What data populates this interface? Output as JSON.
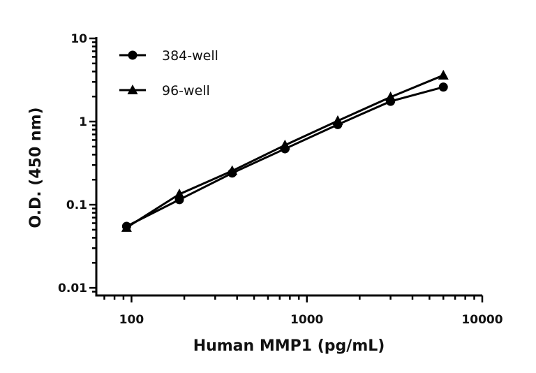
{
  "chart_data": {
    "type": "line",
    "title": "",
    "xlabel": "Human MMP1 (pg/mL)",
    "ylabel": "O.D. (450 nm)",
    "xscale": "log",
    "yscale": "log",
    "xlim": [
      63,
      10000
    ],
    "ylim": [
      0.0081,
      10
    ],
    "x_ticks": [
      100,
      1000,
      10000
    ],
    "x_tick_labels": [
      "100",
      "1000",
      "10000"
    ],
    "y_ticks": [
      0.01,
      0.1,
      1,
      10
    ],
    "y_tick_labels": [
      "0.01",
      "0.1",
      "1",
      "10"
    ],
    "grid": false,
    "legend_position": "top-left",
    "x": [
      93.75,
      187.5,
      375,
      750,
      1500,
      3000,
      6000
    ],
    "series": [
      {
        "name": "384-well",
        "marker": "circle",
        "color": "#000000",
        "values": [
          0.055,
          0.115,
          0.24,
          0.47,
          0.92,
          1.75,
          2.6
        ]
      },
      {
        "name": "96-well",
        "marker": "triangle",
        "color": "#000000",
        "values": [
          0.053,
          0.134,
          0.255,
          0.52,
          1.02,
          1.97,
          3.6
        ]
      }
    ]
  }
}
